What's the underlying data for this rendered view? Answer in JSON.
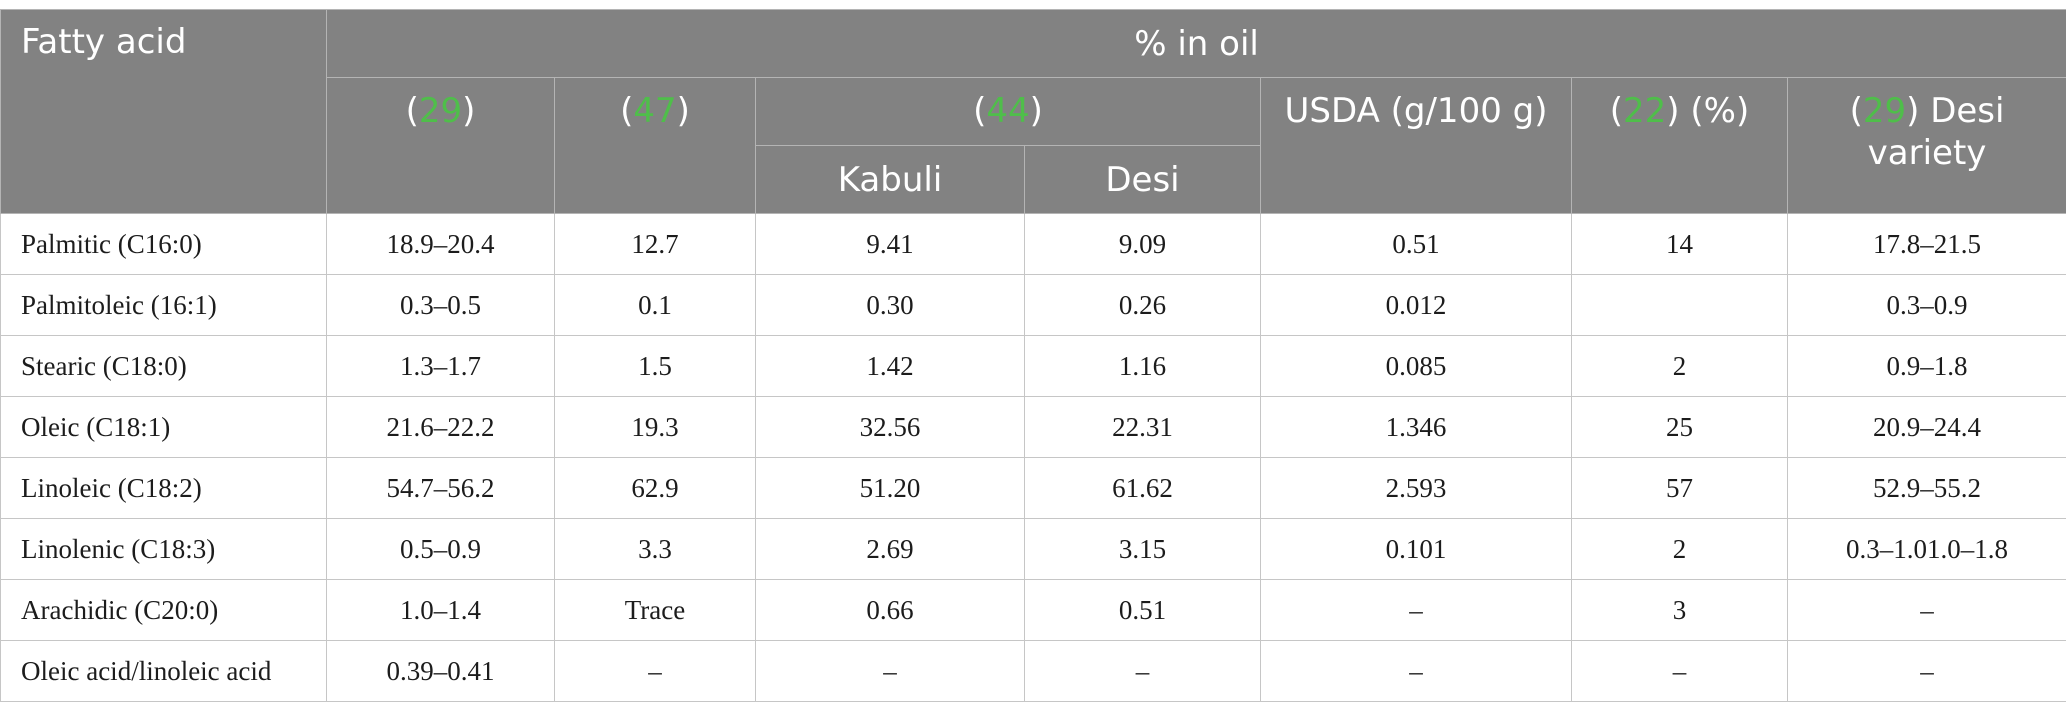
{
  "header": {
    "fatty_acid": "Fatty acid",
    "pct_in_oil": "% in oil",
    "ref_29": "29",
    "ref_47": "47",
    "ref_44": "44",
    "kabuli": "Kabuli",
    "desi": "Desi",
    "usda": "USDA (g/100 g)",
    "ref_22": "22",
    "ref_22_suffix": ") (%)",
    "ref_29b": "29",
    "desi_variety_suffix": ") Desi variety",
    "open_paren": "(",
    "close_paren": ")"
  },
  "rows": [
    {
      "acid": "Palmitic (C16:0)",
      "r29": "18.9–20.4",
      "r47": "12.7",
      "kabuli": "9.41",
      "desi": "9.09",
      "usda": "0.51",
      "r22": "14",
      "desi_variety": "17.8–21.5"
    },
    {
      "acid": "Palmitoleic (16:1)",
      "r29": "0.3–0.5",
      "r47": "0.1",
      "kabuli": "0.30",
      "desi": "0.26",
      "usda": "0.012",
      "r22": "",
      "desi_variety": "0.3–0.9"
    },
    {
      "acid": "Stearic (C18:0)",
      "r29": "1.3–1.7",
      "r47": "1.5",
      "kabuli": "1.42",
      "desi": "1.16",
      "usda": "0.085",
      "r22": "2",
      "desi_variety": "0.9–1.8"
    },
    {
      "acid": "Oleic (C18:1)",
      "r29": "21.6–22.2",
      "r47": "19.3",
      "kabuli": "32.56",
      "desi": "22.31",
      "usda": "1.346",
      "r22": "25",
      "desi_variety": "20.9–24.4"
    },
    {
      "acid": "Linoleic (C18:2)",
      "r29": "54.7–56.2",
      "r47": "62.9",
      "kabuli": "51.20",
      "desi": "61.62",
      "usda": "2.593",
      "r22": "57",
      "desi_variety": "52.9–55.2"
    },
    {
      "acid": "Linolenic (C18:3)",
      "r29": "0.5–0.9",
      "r47": "3.3",
      "kabuli": "2.69",
      "desi": "3.15",
      "usda": "0.101",
      "r22": "2",
      "desi_variety": "0.3–1.01.0–1.8"
    },
    {
      "acid": "Arachidic (C20:0)",
      "r29": "1.0–1.4",
      "r47": "Trace",
      "kabuli": "0.66",
      "desi": "0.51",
      "usda": "–",
      "r22": "3",
      "desi_variety": "–"
    },
    {
      "acid": "Oleic acid/linoleic acid",
      "r29": "0.39–0.41",
      "r47": "–",
      "kabuli": "–",
      "desi": "–",
      "usda": "–",
      "r22": "–",
      "desi_variety": "–"
    }
  ],
  "colors": {
    "header_bg": "#828282",
    "header_text": "#ffffff",
    "reference_link": "#4fbe4a",
    "grid_line": "#c6c6c6"
  }
}
